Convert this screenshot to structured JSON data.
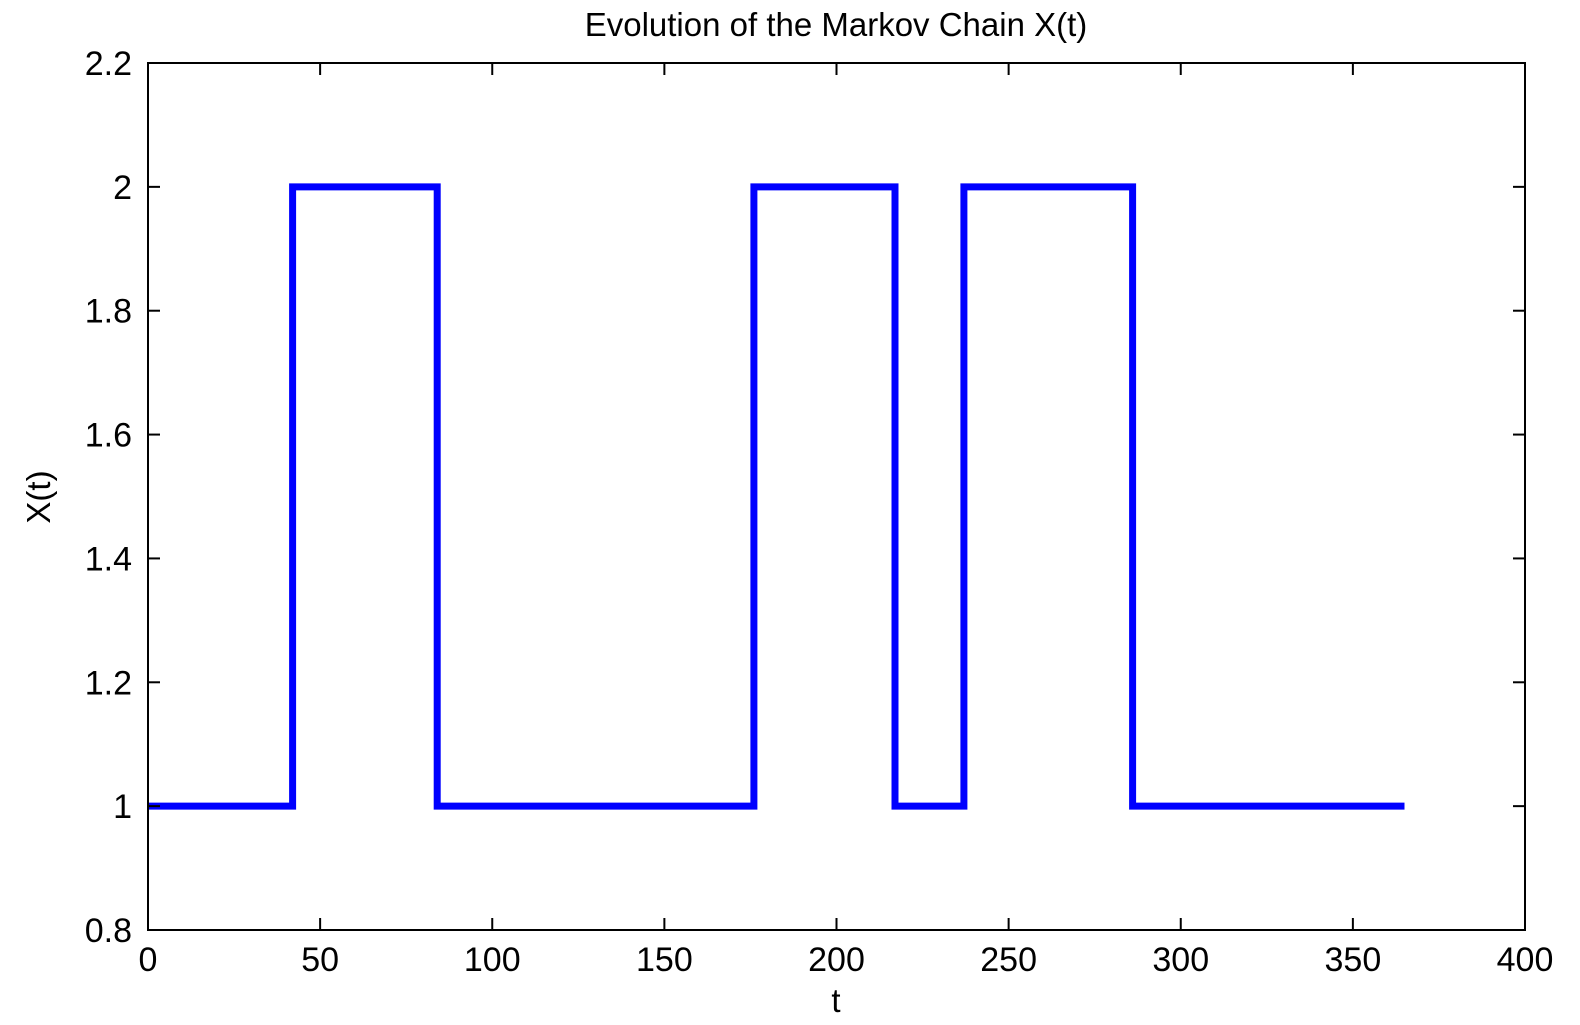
{
  "chart_data": {
    "type": "line",
    "title": "Evolution of the Markov Chain X(t)",
    "xlabel": "t",
    "ylabel": "X(t)",
    "xlim": [
      0,
      400
    ],
    "ylim": [
      0.8,
      2.2
    ],
    "xticks": [
      0,
      50,
      100,
      150,
      200,
      250,
      300,
      350,
      400
    ],
    "xtick_labels": [
      "0",
      "50",
      "100",
      "150",
      "200",
      "250",
      "300",
      "350",
      "400"
    ],
    "yticks": [
      0.8,
      1,
      1.2,
      1.4,
      1.6,
      1.8,
      2,
      2.2
    ],
    "ytick_labels": [
      "0.8",
      "1",
      "1.2",
      "1.4",
      "1.6",
      "1.8",
      "2",
      "2.2"
    ],
    "grid": false,
    "legend": "none",
    "series": [
      {
        "color": "#0000ff",
        "step": true,
        "x": [
          0,
          42,
          42,
          84,
          84,
          176,
          176,
          217,
          217,
          237,
          237,
          286,
          286,
          365
        ],
        "y": [
          1,
          1,
          2,
          2,
          1,
          1,
          2,
          2,
          1,
          1,
          2,
          2,
          1,
          1
        ]
      }
    ]
  }
}
